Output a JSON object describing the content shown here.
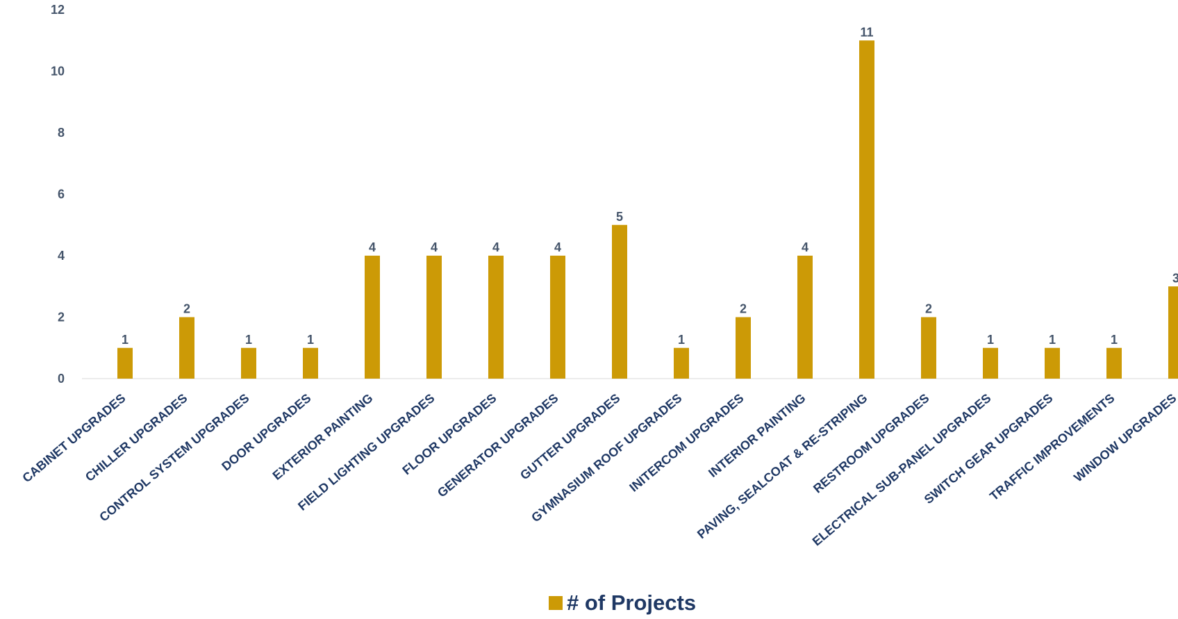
{
  "chart_data": {
    "type": "bar",
    "title": "",
    "xlabel": "",
    "ylabel": "",
    "ylim": [
      0,
      12
    ],
    "yticks": [
      0,
      2,
      4,
      6,
      8,
      10,
      12
    ],
    "grid": false,
    "legend_position": "bottom",
    "categories": [
      "CABINET UPGRADES",
      "CHILLER UPGRADES",
      "CONTROL SYSTEM UPGRADES",
      "DOOR UPGRADES",
      "EXTERIOR PAINTING",
      "FIELD LIGHTING UPGRADES",
      "FLOOR UPGRADES",
      "GENERATOR UPGRADES",
      "GUTTER UPGRADES",
      "GYMNASIUM ROOF UPGRADES",
      "INITERCOM UPGRADES",
      "INTERIOR PAINTING",
      "PAVING, SEALCOAT & RE-STRIPING",
      "RESTROOM UPGRADES",
      "ELECTRICAL SUB-PANEL UPGRADES",
      "SWITCH GEAR UPGRADES",
      "TRAFFIC IMPROVEMENTS",
      "WINDOW UPGRADES"
    ],
    "series": [
      {
        "name": "# of Projects",
        "values": [
          1,
          2,
          1,
          1,
          4,
          4,
          4,
          4,
          5,
          1,
          2,
          4,
          11,
          2,
          1,
          1,
          1,
          3
        ]
      }
    ]
  },
  "colors": {
    "bar": "#cc9a06",
    "axis_text": "#44546a",
    "category_text": "#1f3864",
    "baseline": "#d9d9d9"
  }
}
